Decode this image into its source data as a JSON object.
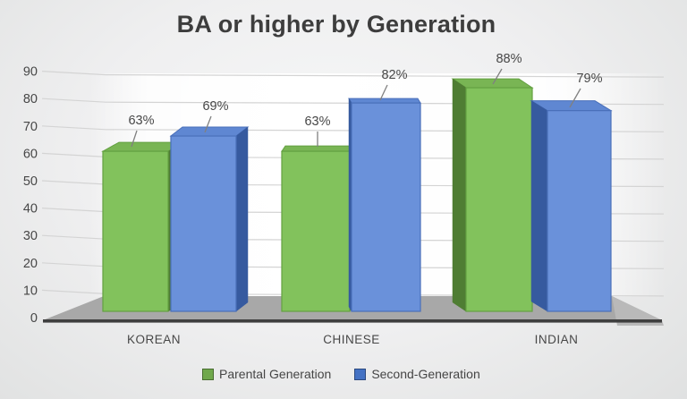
{
  "title": "BA or higher by Generation",
  "chart_data": {
    "type": "bar",
    "style": "3d-clustered-column",
    "title": "BA or higher by Generation",
    "categories": [
      "KOREAN",
      "CHINESE",
      "INDIAN"
    ],
    "series": [
      {
        "name": "Parental Generation",
        "values": [
          63,
          63,
          88
        ],
        "labels": [
          "63%",
          "63%",
          "88%"
        ],
        "color": "#82c25c",
        "color_top": "#79b554",
        "color_side": "#4f7d33",
        "color_stroke": "#63a041",
        "legend_color": "#70a84c"
      },
      {
        "name": "Second-Generation",
        "values": [
          69,
          82,
          79
        ],
        "labels": [
          "69%",
          "82%",
          "79%"
        ],
        "color": "#6a91da",
        "color_top": "#5f87d2",
        "color_side": "#365a9f",
        "color_stroke": "#4a70ba",
        "legend_color": "#4472c4"
      }
    ],
    "xlabel": "",
    "ylabel": "",
    "yticks": [
      0,
      10,
      20,
      30,
      40,
      50,
      60,
      70,
      80,
      90
    ],
    "ylim": [
      0,
      90
    ],
    "grid": true,
    "legend_position": "bottom",
    "wall_color": "#ffffff",
    "floor_color": "#a8a8a8",
    "axis_line_color": "#3f3f3f",
    "gridline_color": "#d4d4d4",
    "text_color": "#474747",
    "leader_line_color": "#808080"
  }
}
